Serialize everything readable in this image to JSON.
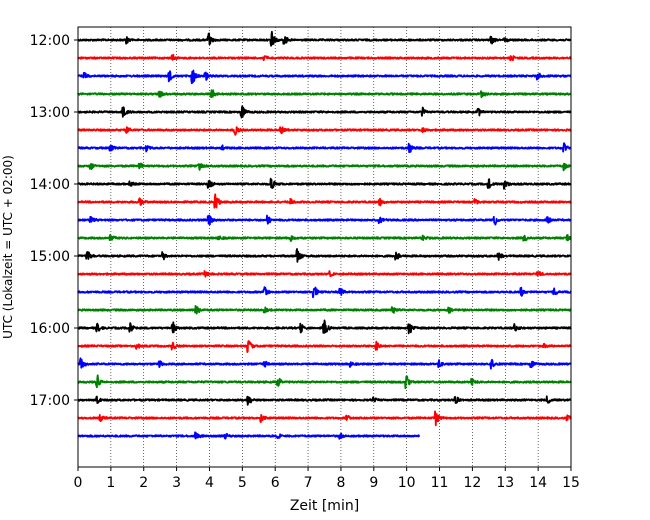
{
  "chart_data": {
    "type": "line",
    "title": "",
    "xlabel": "Zeit  [min]",
    "ylabel": "UTC (Lokalzeit = UTC + 02:00)",
    "xlim": [
      0,
      15
    ],
    "x_ticks": [
      "0",
      "1",
      "2",
      "3",
      "4",
      "5",
      "6",
      "7",
      "8",
      "9",
      "10",
      "11",
      "12",
      "13",
      "14",
      "15"
    ],
    "y_ticks": [
      "12:00",
      "13:00",
      "14:00",
      "15:00",
      "16:00",
      "17:00"
    ],
    "grid": "vertical dotted",
    "line_colors": [
      "#000000",
      "#ff0000",
      "#0000ff",
      "#008000"
    ],
    "series": [
      {
        "start": "12:00",
        "end_min": 15,
        "color": "#000000",
        "events": [
          [
            1.5,
            0.35
          ],
          [
            4.0,
            0.7
          ],
          [
            5.9,
            0.9
          ],
          [
            6.3,
            0.5
          ],
          [
            12.6,
            0.4
          ],
          [
            13.0,
            0.3
          ]
        ]
      },
      {
        "start": "12:15",
        "end_min": 15,
        "color": "#ff0000",
        "events": [
          [
            2.9,
            0.3
          ],
          [
            5.7,
            0.3
          ],
          [
            13.2,
            0.3
          ]
        ]
      },
      {
        "start": "12:30",
        "end_min": 15,
        "color": "#0000ff",
        "events": [
          [
            0.2,
            0.5
          ],
          [
            2.8,
            0.6
          ],
          [
            3.5,
            0.9
          ],
          [
            3.9,
            0.5
          ],
          [
            14.0,
            0.4
          ]
        ]
      },
      {
        "start": "12:45",
        "end_min": 15,
        "color": "#008000",
        "events": [
          [
            2.5,
            0.5
          ],
          [
            4.1,
            0.4
          ],
          [
            12.3,
            0.4
          ]
        ]
      },
      {
        "start": "13:00",
        "end_min": 15,
        "color": "#000000",
        "events": [
          [
            1.4,
            0.5
          ],
          [
            5.0,
            0.7
          ],
          [
            10.5,
            0.5
          ],
          [
            12.2,
            0.4
          ]
        ]
      },
      {
        "start": "13:15",
        "end_min": 15,
        "color": "#ff0000",
        "events": [
          [
            1.5,
            0.35
          ],
          [
            4.8,
            0.5
          ],
          [
            6.2,
            0.4
          ],
          [
            10.5,
            0.3
          ]
        ]
      },
      {
        "start": "13:30",
        "end_min": 15,
        "color": "#0000ff",
        "events": [
          [
            1.0,
            0.4
          ],
          [
            2.1,
            0.3
          ],
          [
            4.4,
            0.3
          ],
          [
            10.1,
            0.5
          ],
          [
            14.8,
            0.5
          ]
        ]
      },
      {
        "start": "13:45",
        "end_min": 15,
        "color": "#008000",
        "events": [
          [
            0.4,
            0.4
          ],
          [
            1.9,
            0.3
          ],
          [
            3.7,
            0.4
          ],
          [
            14.8,
            0.5
          ]
        ]
      },
      {
        "start": "14:00",
        "end_min": 15,
        "color": "#000000",
        "events": [
          [
            1.6,
            0.4
          ],
          [
            4.0,
            0.5
          ],
          [
            5.9,
            0.6
          ],
          [
            12.5,
            0.6
          ],
          [
            13.0,
            0.5
          ]
        ]
      },
      {
        "start": "14:15",
        "end_min": 15,
        "color": "#ff0000",
        "events": [
          [
            1.9,
            0.4
          ],
          [
            4.2,
            0.8
          ],
          [
            6.5,
            0.4
          ],
          [
            9.2,
            0.4
          ],
          [
            12.1,
            0.4
          ]
        ]
      },
      {
        "start": "14:30",
        "end_min": 15,
        "color": "#0000ff",
        "events": [
          [
            0.4,
            0.4
          ],
          [
            4.0,
            0.6
          ],
          [
            5.8,
            0.5
          ],
          [
            9.2,
            0.4
          ],
          [
            12.7,
            0.5
          ],
          [
            14.3,
            0.4
          ]
        ]
      },
      {
        "start": "14:45",
        "end_min": 15,
        "color": "#008000",
        "events": [
          [
            1.0,
            0.4
          ],
          [
            4.3,
            0.3
          ],
          [
            6.5,
            0.3
          ],
          [
            10.5,
            0.3
          ],
          [
            13.6,
            0.3
          ],
          [
            14.9,
            0.4
          ]
        ]
      },
      {
        "start": "15:00",
        "end_min": 15,
        "color": "#000000",
        "events": [
          [
            0.3,
            0.5
          ],
          [
            2.6,
            0.4
          ],
          [
            6.7,
            0.8
          ],
          [
            9.7,
            0.4
          ],
          [
            12.8,
            0.4
          ]
        ]
      },
      {
        "start": "15:15",
        "end_min": 15,
        "color": "#ff0000",
        "events": [
          [
            3.9,
            0.3
          ],
          [
            7.7,
            0.3
          ],
          [
            14.0,
            0.3
          ]
        ]
      },
      {
        "start": "15:30",
        "end_min": 15,
        "color": "#0000ff",
        "events": [
          [
            5.7,
            0.5
          ],
          [
            7.2,
            0.6
          ],
          [
            8.0,
            0.4
          ],
          [
            13.5,
            0.5
          ],
          [
            14.5,
            0.4
          ]
        ]
      },
      {
        "start": "15:45",
        "end_min": 15,
        "color": "#008000",
        "events": [
          [
            3.6,
            0.6
          ],
          [
            5.7,
            0.4
          ],
          [
            9.6,
            0.3
          ],
          [
            11.3,
            0.3
          ]
        ]
      },
      {
        "start": "16:00",
        "end_min": 15,
        "color": "#000000",
        "events": [
          [
            0.6,
            0.5
          ],
          [
            1.6,
            0.5
          ],
          [
            2.9,
            0.6
          ],
          [
            6.8,
            0.5
          ],
          [
            7.5,
            1.0
          ],
          [
            10.1,
            0.6
          ],
          [
            13.3,
            0.4
          ]
        ]
      },
      {
        "start": "16:15",
        "end_min": 15,
        "color": "#ff0000",
        "events": [
          [
            1.8,
            0.3
          ],
          [
            2.9,
            0.4
          ],
          [
            5.2,
            0.8
          ],
          [
            9.1,
            0.5
          ],
          [
            14.2,
            0.3
          ]
        ]
      },
      {
        "start": "16:30",
        "end_min": 15,
        "color": "#0000ff",
        "events": [
          [
            0.1,
            0.7
          ],
          [
            2.5,
            0.4
          ],
          [
            5.7,
            0.3
          ],
          [
            8.3,
            0.4
          ],
          [
            11.0,
            0.4
          ],
          [
            12.6,
            0.5
          ],
          [
            13.8,
            0.4
          ]
        ]
      },
      {
        "start": "16:45",
        "end_min": 15,
        "color": "#008000",
        "events": [
          [
            0.6,
            0.7
          ],
          [
            6.1,
            0.5
          ],
          [
            10.0,
            0.7
          ],
          [
            12.0,
            0.5
          ]
        ]
      },
      {
        "start": "17:00",
        "end_min": 15,
        "color": "#000000",
        "events": [
          [
            0.6,
            0.4
          ],
          [
            5.2,
            0.5
          ],
          [
            9.0,
            0.3
          ],
          [
            11.5,
            0.5
          ],
          [
            14.3,
            0.4
          ]
        ]
      },
      {
        "start": "17:15",
        "end_min": 15,
        "color": "#ff0000",
        "events": [
          [
            0.7,
            0.4
          ],
          [
            5.6,
            0.4
          ],
          [
            8.2,
            0.3
          ],
          [
            10.9,
            0.8
          ],
          [
            14.9,
            0.3
          ]
        ]
      },
      {
        "start": "17:30",
        "end_min": 10.4,
        "color": "#0000ff",
        "events": [
          [
            3.6,
            0.4
          ],
          [
            4.5,
            0.3
          ],
          [
            6.1,
            0.3
          ],
          [
            8.0,
            0.3
          ]
        ]
      }
    ]
  }
}
